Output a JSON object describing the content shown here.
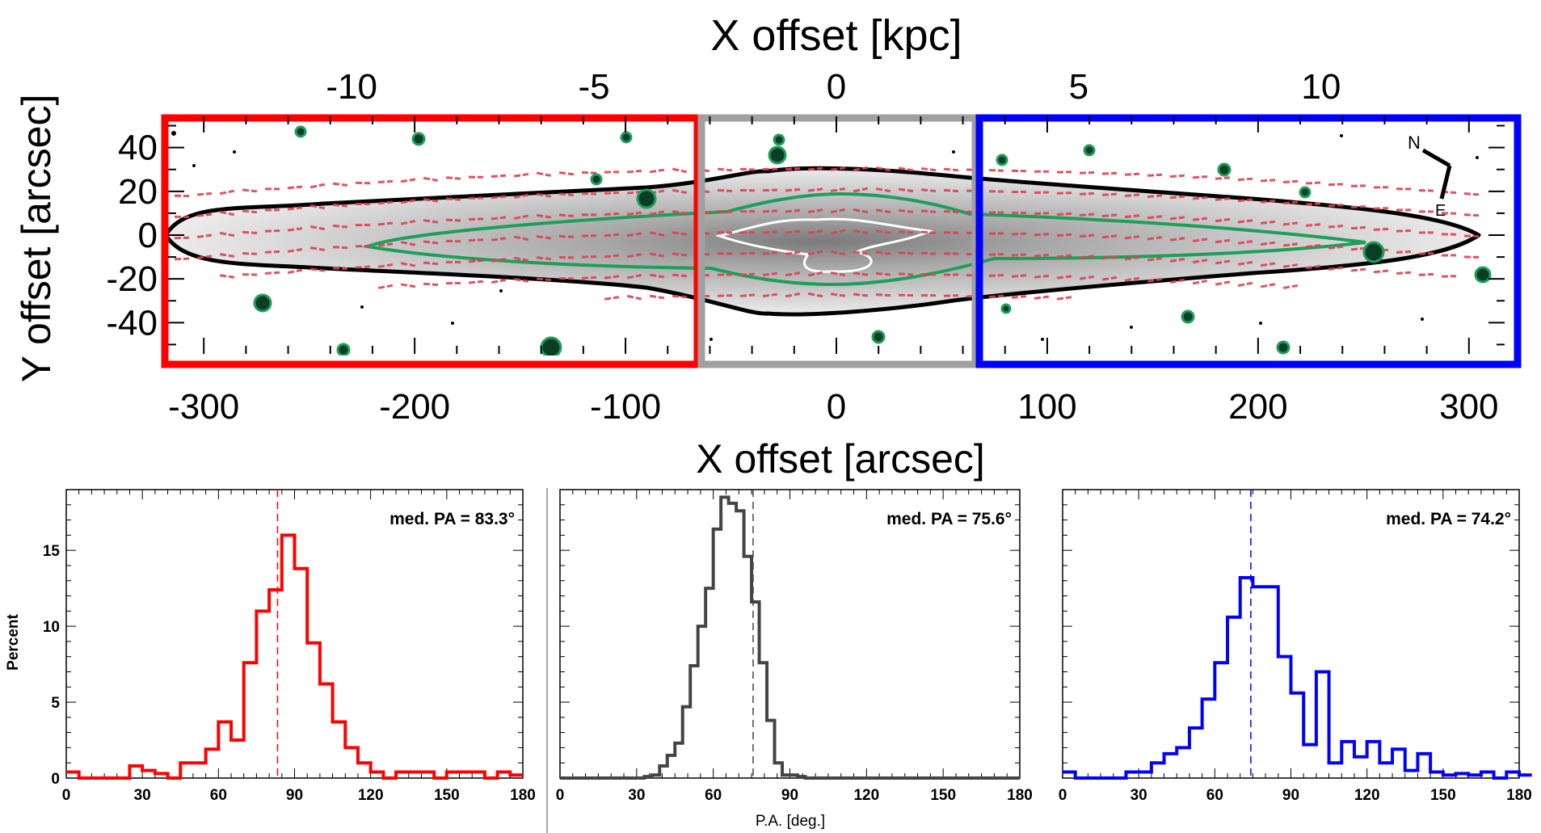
{
  "image_panel": {
    "type": "image",
    "top_axis_label": "X offset [kpc]",
    "top_ticks": [
      "-10",
      "-5",
      "0",
      "5",
      "10"
    ],
    "top_tick_values": [
      -10,
      -5,
      0,
      5,
      10
    ],
    "bottom_axis_label": "X offset [arcsec]",
    "bottom_ticks": [
      "-300",
      "-200",
      "-100",
      "0",
      "100",
      "200",
      "300"
    ],
    "bottom_tick_values": [
      -300,
      -200,
      -100,
      0,
      100,
      200,
      300
    ],
    "y_axis_label": "Y offset [arcsec]",
    "y_ticks": [
      "40",
      "20",
      "0",
      "-20",
      "-40"
    ],
    "y_tick_values": [
      40,
      20,
      0,
      -20,
      -40
    ],
    "xlim_arcsec": [
      -320,
      320
    ],
    "ylim_arcsec": [
      -55,
      55
    ],
    "kpc_per_arcsec": 0.0435,
    "region_boxes": [
      {
        "color": "#ff0000",
        "x_range_arcsec": [
          -320,
          -68
        ]
      },
      {
        "color": "#a0a0a0",
        "x_range_arcsec": [
          -68,
          68
        ]
      },
      {
        "color": "#0000ff",
        "x_range_arcsec": [
          68,
          320
        ]
      }
    ],
    "compass": {
      "north_label": "N",
      "east_label": "E"
    }
  },
  "chart_data": [
    {
      "type": "histogram",
      "color": "#ff0000",
      "annotation": "med. PA = 83.3°",
      "median": 83.3,
      "bin_width": 5,
      "bin_start": 0,
      "values": [
        0.4,
        0,
        0,
        0,
        0,
        0.8,
        0.5,
        0.3,
        0,
        1.0,
        1.0,
        1.9,
        3.7,
        2.5,
        7.6,
        11.0,
        12.4,
        16.0,
        13.8,
        8.9,
        6.2,
        3.7,
        2.0,
        1.0,
        0.4,
        0,
        0.4,
        0.4,
        0.4,
        0,
        0.4,
        0.4,
        0.4,
        0,
        0.4,
        0.2
      ],
      "xlim": [
        0,
        180
      ],
      "ylim": [
        0,
        19
      ],
      "xticks": [
        0,
        30,
        60,
        90,
        120,
        150,
        180
      ],
      "yticks": [
        0,
        5,
        10,
        15
      ],
      "ylabel": "Percent",
      "xlabel": ""
    },
    {
      "type": "histogram",
      "color": "#444444",
      "annotation": "med. PA = 75.6°",
      "median": 75.6,
      "bin_width": 3,
      "bin_start": 0,
      "values": [
        0,
        0,
        0,
        0,
        0,
        0,
        0,
        0,
        0,
        0,
        0,
        0.1,
        0.2,
        0.8,
        1.5,
        2.3,
        4.7,
        7.4,
        10.0,
        12.5,
        16.4,
        18.5,
        18.1,
        17.6,
        14.6,
        11.6,
        7.6,
        3.8,
        1.0,
        0.2,
        0.2,
        0.1,
        0,
        0,
        0,
        0,
        0,
        0,
        0,
        0,
        0,
        0,
        0,
        0,
        0,
        0,
        0,
        0,
        0,
        0,
        0,
        0,
        0,
        0,
        0,
        0,
        0,
        0,
        0,
        0
      ],
      "xlim": [
        0,
        180
      ],
      "ylim": [
        0,
        19
      ],
      "xticks": [
        0,
        30,
        60,
        90,
        120,
        150,
        180
      ],
      "yticks": [],
      "ylabel": "",
      "xlabel": "P.A. [deg.]"
    },
    {
      "type": "histogram",
      "color": "#0000ff",
      "annotation": "med. PA = 74.2°",
      "median": 74.2,
      "bin_width": 5,
      "bin_start": 0,
      "values": [
        0.4,
        0,
        0,
        0,
        0,
        0.4,
        0.4,
        1.0,
        1.6,
        2.0,
        3.3,
        5.2,
        7.6,
        10.6,
        13.2,
        12.6,
        12.6,
        8.0,
        5.6,
        2.2,
        7.0,
        1.0,
        2.4,
        1.4,
        2.4,
        1.0,
        1.9,
        0.5,
        1.6,
        0.4,
        0.2,
        0.3,
        0.2,
        0.4,
        0,
        0.4,
        0.2
      ],
      "xlim": [
        0,
        180
      ],
      "ylim": [
        0,
        19
      ],
      "xticks": [
        0,
        30,
        60,
        90,
        120,
        150,
        180
      ],
      "yticks": [],
      "ylabel": "",
      "xlabel": ""
    }
  ]
}
